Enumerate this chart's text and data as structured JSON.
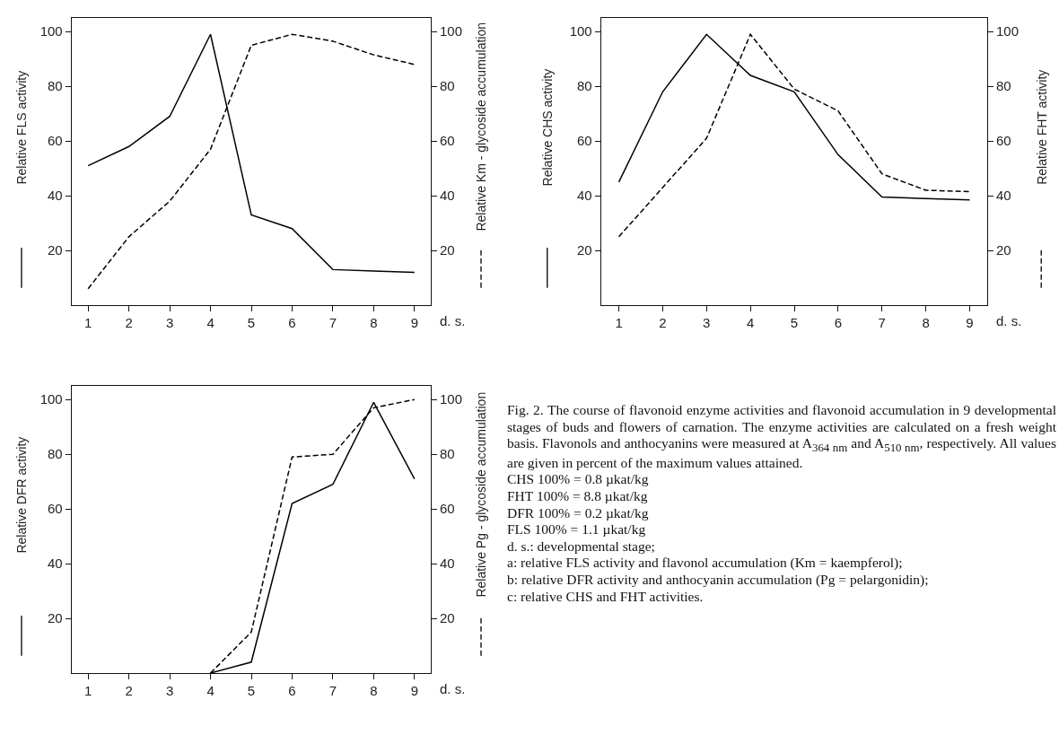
{
  "chart_data": [
    {
      "type": "line",
      "xlabel": "d. s.",
      "ylabel": "Relative FLS activity",
      "y2label": "Relative Km - glycoside accumulation",
      "x": [
        1,
        2,
        3,
        4,
        5,
        6,
        7,
        8,
        9
      ],
      "xlim": [
        0.6,
        9.4
      ],
      "xticks": [
        1,
        2,
        3,
        4,
        5,
        6,
        7,
        8,
        9
      ],
      "ylim": [
        0,
        105
      ],
      "yticks": [
        20,
        40,
        60,
        80,
        100
      ],
      "y2lim": [
        0,
        105
      ],
      "y2ticks": [
        20,
        40,
        60,
        80,
        100
      ],
      "grid": false,
      "marker": "none",
      "series": [
        {
          "color": "#000000",
          "line_style": "solid",
          "values": [
            51,
            58,
            69,
            99,
            33,
            28,
            13,
            12.5,
            12
          ]
        },
        {
          "color": "#000000",
          "line_style": "dashed",
          "axis": "y2",
          "values": [
            6,
            25,
            38,
            57,
            95,
            99,
            96.5,
            91.5,
            88
          ]
        }
      ]
    },
    {
      "type": "line",
      "xlabel": "d. s.",
      "ylabel": "Relative CHS activity",
      "y2label": "Relative FHT activity",
      "x": [
        1,
        2,
        3,
        4,
        5,
        6,
        7,
        8,
        9
      ],
      "xlim": [
        0.6,
        9.4
      ],
      "xticks": [
        1,
        2,
        3,
        4,
        5,
        6,
        7,
        8,
        9
      ],
      "ylim": [
        0,
        105
      ],
      "yticks": [
        20,
        40,
        60,
        80,
        100
      ],
      "y2lim": [
        0,
        105
      ],
      "y2ticks": [
        20,
        40,
        60,
        80,
        100
      ],
      "grid": false,
      "marker": "none",
      "series": [
        {
          "color": "#000000",
          "line_style": "solid",
          "values": [
            45,
            78,
            99,
            84,
            78,
            55,
            39.5,
            39,
            38.5
          ]
        },
        {
          "color": "#000000",
          "line_style": "dashed",
          "axis": "y2",
          "values": [
            25,
            43,
            61,
            99,
            79,
            71,
            48,
            42,
            41.5
          ]
        }
      ]
    },
    {
      "type": "line",
      "xlabel": "d. s.",
      "ylabel": "Relative DFR activity",
      "y2label": "Relative Pg - glycoside accumulation",
      "xlim": [
        0.6,
        9.4
      ],
      "xticks": [
        1,
        2,
        3,
        4,
        5,
        6,
        7,
        8,
        9
      ],
      "ylim": [
        0,
        105
      ],
      "yticks": [
        20,
        40,
        60,
        80,
        100
      ],
      "y2lim": [
        0,
        105
      ],
      "y2ticks": [
        20,
        40,
        60,
        80,
        100
      ],
      "grid": false,
      "marker": "none",
      "series": [
        {
          "color": "#000000",
          "line_style": "solid",
          "x": [
            4,
            5,
            6,
            7,
            8,
            9
          ],
          "values": [
            0,
            4,
            62,
            69,
            99,
            71
          ]
        },
        {
          "color": "#000000",
          "line_style": "dashed",
          "axis": "y2",
          "x": [
            4,
            5,
            6,
            7,
            8,
            9
          ],
          "values": [
            0,
            15,
            79,
            80,
            97,
            100
          ]
        }
      ]
    },
    {
      "type": "other",
      "annotations": [
        "Fig. 2. The course of flavonoid enzyme activities and flavonoid accumulation in 9 developmental stages of buds and flowers of carnation. The enzyme activities are calculated on a fresh weight basis. Flavonols and anthocyanins were measured at A$_{364 nm}$ and A$_{510 nm}$, respectively. All values are given in percent of the maximum values attained.",
        "CHS  100% = 0.8 µkat/kg",
        "FHT  100% = 8.8 µkat/kg",
        "DFR  100% = 0.2 µkat/kg",
        "FLS  100% = 1.1 µkat/kg",
        "d. s.: developmental stage;",
        "a: relative FLS activity and flavonol accumulation (Km = kaempferol);",
        "b: relative DFR activity and anthocyanin accumulation (Pg = pelargonidin);",
        "c: relative CHS and FHT activities."
      ]
    }
  ]
}
